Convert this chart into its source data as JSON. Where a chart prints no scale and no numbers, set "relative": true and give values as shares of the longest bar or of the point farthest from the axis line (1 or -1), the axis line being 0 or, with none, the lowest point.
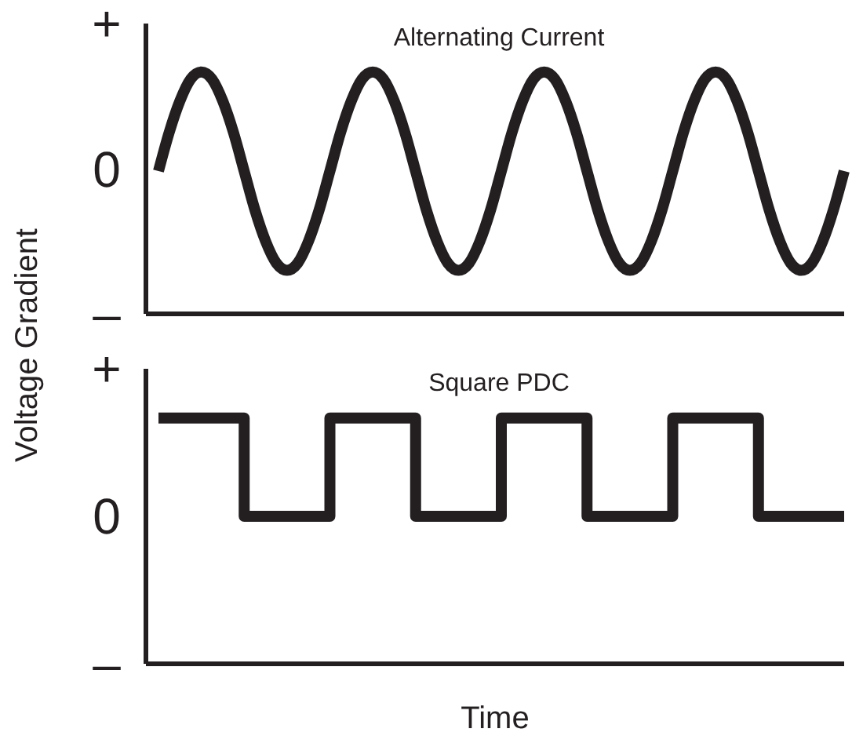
{
  "chart_data": [
    {
      "type": "line",
      "title": "Alternating Current",
      "ylabel": "Voltage Gradient",
      "relative": true,
      "annotations": [
        "+",
        "0",
        "–"
      ],
      "categories": [
        null,
        null,
        null,
        null,
        null,
        null,
        null,
        null,
        null,
        null,
        null,
        null,
        null,
        null,
        null,
        null,
        null,
        null,
        null,
        null,
        null,
        null,
        null,
        null,
        null,
        null,
        null,
        null,
        null,
        null,
        null,
        null,
        null,
        null,
        null,
        null,
        null,
        null,
        null,
        null,
        null,
        null,
        null,
        null,
        null,
        null,
        null,
        null,
        null,
        null,
        null,
        null,
        null,
        null,
        null,
        null,
        null,
        null,
        null,
        null,
        null,
        null,
        null,
        null,
        null
      ],
      "series": [
        {
          "color": "#231f20",
          "values": [
            0.59,
            0.75,
            0.88,
            0.97,
            1,
            0.97,
            0.88,
            0.75,
            0.59,
            0.43,
            0.3,
            0.21,
            0.18,
            0.21,
            0.3,
            0.43,
            0.59,
            0.75,
            0.88,
            0.97,
            1,
            0.97,
            0.88,
            0.75,
            0.59,
            0.43,
            0.3,
            0.21,
            0.18,
            0.21,
            0.3,
            0.43,
            0.59,
            0.75,
            0.88,
            0.97,
            1,
            0.97,
            0.88,
            0.75,
            0.59,
            0.43,
            0.3,
            0.21,
            0.18,
            0.21,
            0.3,
            0.43,
            0.59,
            0.75,
            0.88,
            0.97,
            1,
            0.97,
            0.88,
            0.75,
            0.59,
            0.43,
            0.3,
            0.21,
            0.18,
            0.21,
            0.3,
            0.43,
            0.59
          ]
        }
      ]
    },
    {
      "type": "step",
      "title": "Square PDC",
      "xlabel": "Time",
      "relative": true,
      "annotations": [
        "+",
        "0",
        "–"
      ],
      "categories": [
        null,
        null,
        null,
        null,
        null,
        null,
        null,
        null,
        null
      ],
      "series": [
        {
          "color": "#231f20",
          "values": [
            1,
            0.6,
            1,
            0.6,
            1,
            0.6,
            1,
            0.6,
            0.6
          ]
        }
      ]
    }
  ]
}
